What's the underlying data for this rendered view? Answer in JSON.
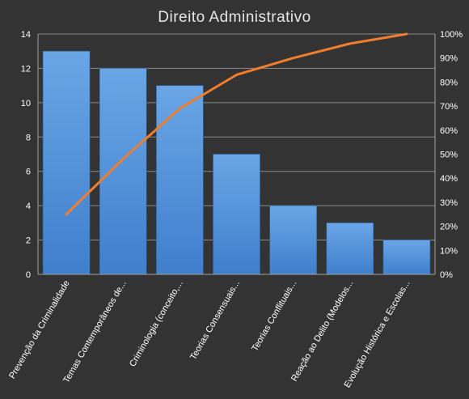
{
  "chart_data": {
    "type": "bar",
    "title": "Direito  Administrativo",
    "categories": [
      "Prevenção da Criminalidade",
      "Temas Contemporâneos de...",
      "Criminologia (conceito,...",
      "Teorias Consensuais...",
      "Teorias Conflituais...",
      "Reação ao Delito (Modelos...",
      "Evolução Histórica e Escolas..."
    ],
    "series": [
      {
        "type": "bar",
        "axis": "left",
        "values": [
          13,
          12,
          11,
          7,
          4,
          3,
          2
        ],
        "color": "#4f8fd8"
      },
      {
        "type": "line",
        "axis": "right",
        "values": [
          25,
          48,
          69,
          83,
          90,
          96,
          100
        ],
        "color": "#f07d2b"
      }
    ],
    "yaxis_left": {
      "min": 0,
      "max": 14,
      "ticks": [
        "0",
        "2",
        "4",
        "6",
        "8",
        "10",
        "12",
        "14"
      ]
    },
    "yaxis_right": {
      "min": 0,
      "max": 100,
      "ticks": [
        "0%",
        "10%",
        "20%",
        "30%",
        "40%",
        "50%",
        "60%",
        "70%",
        "80%",
        "90%",
        "100%"
      ]
    },
    "grid": true,
    "legend": "none",
    "background": "#333333"
  }
}
